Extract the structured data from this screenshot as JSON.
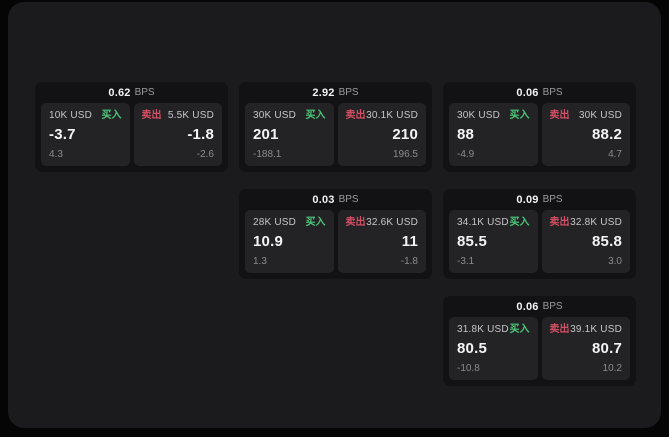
{
  "labels": {
    "buy": "买入",
    "sell": "卖出",
    "bps_unit": "BPS"
  },
  "colors": {
    "background": "#050505",
    "page": "#1b1b1d",
    "card": "#121214",
    "panel": "#232326",
    "buy_green": "#4dc878",
    "sell_red": "#d44f63"
  },
  "cards": [
    {
      "bps": "0.62",
      "buy": {
        "size": "10K USD",
        "price": "-3.7",
        "delta": "4.3"
      },
      "sell": {
        "size": "5.5K USD",
        "price": "-1.8",
        "delta": "-2.6"
      }
    },
    {
      "bps": "2.92",
      "buy": {
        "size": "30K USD",
        "price": "201",
        "delta": "-188.1"
      },
      "sell": {
        "size": "30.1K USD",
        "price": "210",
        "delta": "196.5"
      }
    },
    {
      "bps": "0.06",
      "buy": {
        "size": "30K USD",
        "price": "88",
        "delta": "-4.9"
      },
      "sell": {
        "size": "30K USD",
        "price": "88.2",
        "delta": "4.7"
      }
    },
    {
      "bps": "0.03",
      "buy": {
        "size": "28K USD",
        "price": "10.9",
        "delta": "1.3"
      },
      "sell": {
        "size": "32.6K USD",
        "price": "11",
        "delta": "-1.8"
      }
    },
    {
      "bps": "0.09",
      "buy": {
        "size": "34.1K USD",
        "price": "85.5",
        "delta": "-3.1"
      },
      "sell": {
        "size": "32.8K USD",
        "price": "85.8",
        "delta": "3.0"
      }
    },
    {
      "bps": "0.06",
      "buy": {
        "size": "31.8K USD",
        "price": "80.5",
        "delta": "-10.8"
      },
      "sell": {
        "size": "39.1K USD",
        "price": "80.7",
        "delta": "10.2"
      }
    }
  ]
}
